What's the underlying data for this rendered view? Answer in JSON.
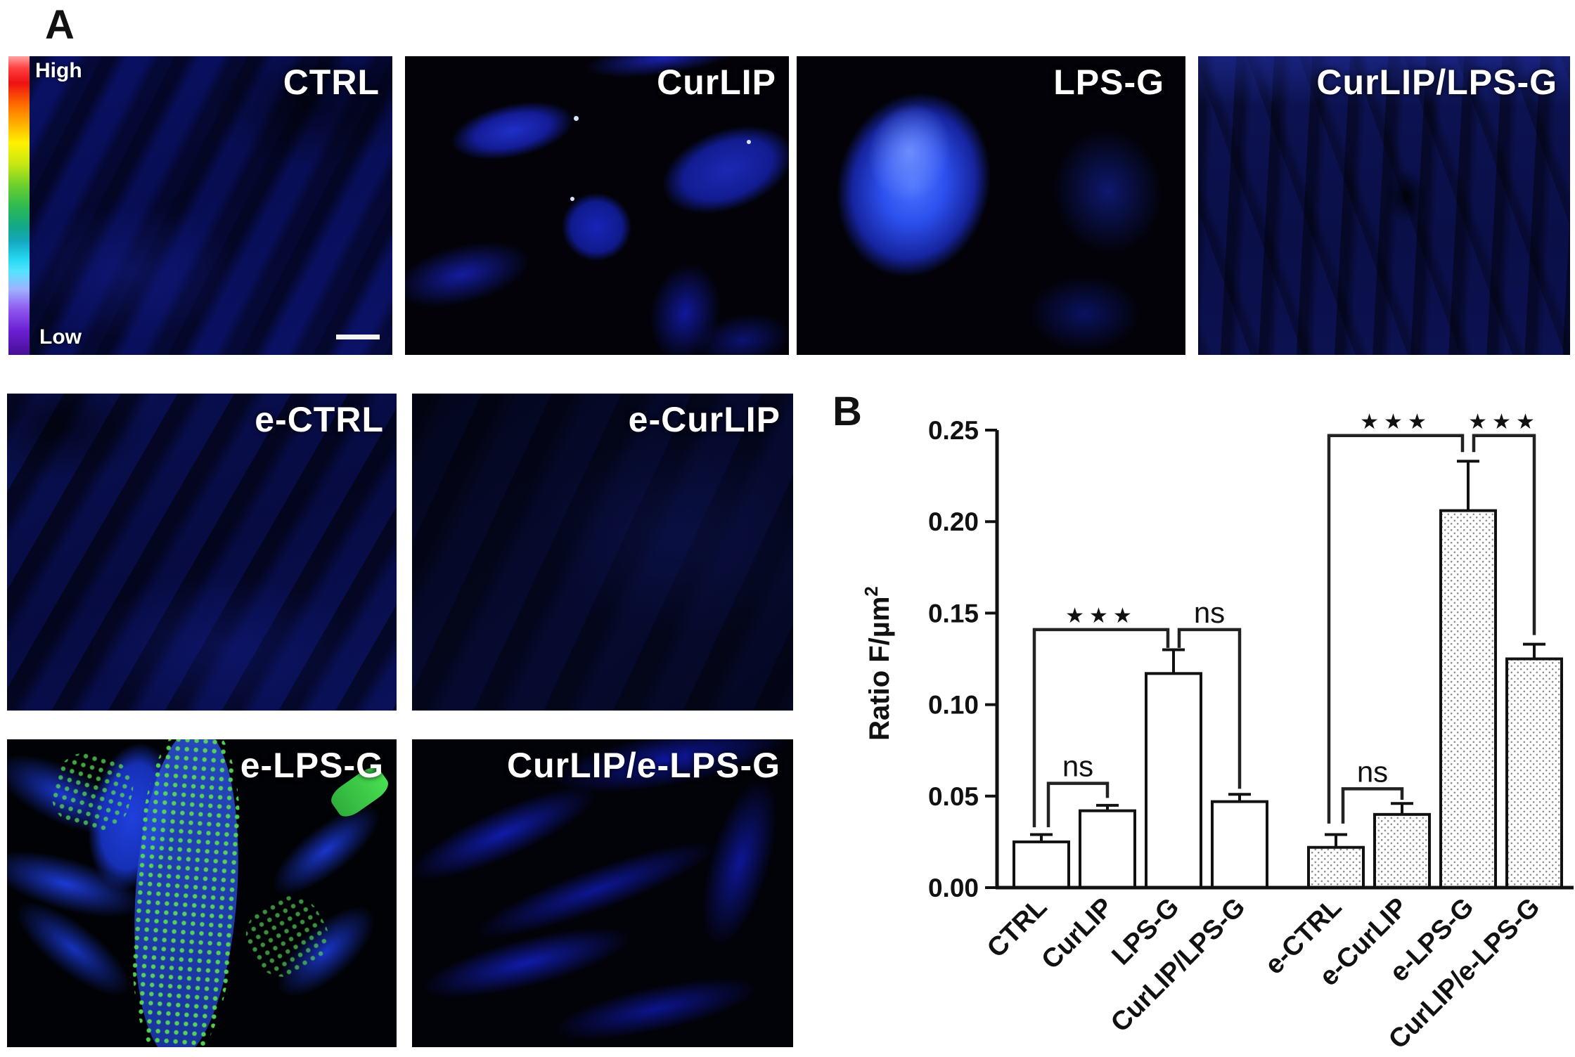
{
  "figure": {
    "panel_a_label": "A",
    "panel_b_label": "B",
    "colorbar": {
      "high_label": "High",
      "low_label": "Low",
      "colors_top_to_bottom": [
        "#ee1111",
        "#ff6a00",
        "#ffb300",
        "#fff200",
        "#6fd02c",
        "#12a888",
        "#26d8f2",
        "#9fb2ff",
        "#8e55ee",
        "#470f96"
      ]
    },
    "panels": [
      {
        "label": "CTRL",
        "has_scale_bar": true
      },
      {
        "label": "CurLIP"
      },
      {
        "label": "LPS-G"
      },
      {
        "label": "CurLIP/LPS-G"
      },
      {
        "label": "e-CTRL"
      },
      {
        "label": "e-CurLIP"
      },
      {
        "label": "e-LPS-G"
      },
      {
        "label": "CurLIP/e-LPS-G"
      }
    ]
  },
  "chart_data": {
    "type": "bar",
    "title": "",
    "xlabel": "",
    "ylabel": "Ratio F/µm²",
    "ylabel_base": "Ratio F/µm",
    "ylabel_exponent": "2",
    "ylim": [
      0,
      0.25
    ],
    "yticks": [
      0,
      0.05,
      0.1,
      0.15,
      0.2,
      0.25
    ],
    "ytick_labels": [
      "0.00",
      "0.05",
      "0.10",
      "0.15",
      "0.20",
      "0.25"
    ],
    "categories": [
      "CTRL",
      "CurLIP",
      "LPS-G",
      "CurLIP/LPS-G",
      "e-CTRL",
      "e-CurLIP",
      "e-LPS-G",
      "CurLIP/e-LPS-G"
    ],
    "values": [
      0.025,
      0.042,
      0.117,
      0.047,
      0.022,
      0.04,
      0.206,
      0.125
    ],
    "errors": [
      0.004,
      0.003,
      0.013,
      0.004,
      0.007,
      0.006,
      0.027,
      0.008
    ],
    "bar_styles": [
      "plain",
      "plain",
      "plain",
      "plain",
      "stippled",
      "stippled",
      "stippled",
      "stippled"
    ],
    "grid": false,
    "legend": null,
    "significance": [
      {
        "between": [
          "CTRL",
          "CurLIP"
        ],
        "label": "ns",
        "bar_y": 0.057,
        "leg_a_y": 0.033,
        "leg_b_y": 0.049,
        "a_dx": 10,
        "b_dx": 0
      },
      {
        "between": [
          "CTRL",
          "LPS-G"
        ],
        "label": "***",
        "bar_y": 0.141,
        "leg_a_y": 0.033,
        "leg_b_y": 0.131,
        "a_dx": -10,
        "b_dx": -8
      },
      {
        "between": [
          "LPS-G",
          "CurLIP/LPS-G"
        ],
        "label": "ns",
        "bar_y": 0.141,
        "leg_a_y": 0.131,
        "leg_b_y": 0.054,
        "a_dx": 8,
        "b_dx": 0
      },
      {
        "between": [
          "e-CTRL",
          "e-CurLIP"
        ],
        "label": "ns",
        "bar_y": 0.054,
        "leg_a_y": 0.035,
        "leg_b_y": 0.048,
        "a_dx": 10,
        "b_dx": 0
      },
      {
        "between": [
          "e-CTRL",
          "e-LPS-G"
        ],
        "label": "***",
        "bar_y": 0.247,
        "leg_a_y": 0.035,
        "leg_b_y": 0.238,
        "a_dx": -10,
        "b_dx": -8
      },
      {
        "between": [
          "e-LPS-G",
          "CurLIP/e-LPS-G"
        ],
        "label": "***",
        "bar_y": 0.247,
        "leg_a_y": 0.238,
        "leg_b_y": 0.138,
        "a_dx": 8,
        "b_dx": 0
      }
    ]
  }
}
